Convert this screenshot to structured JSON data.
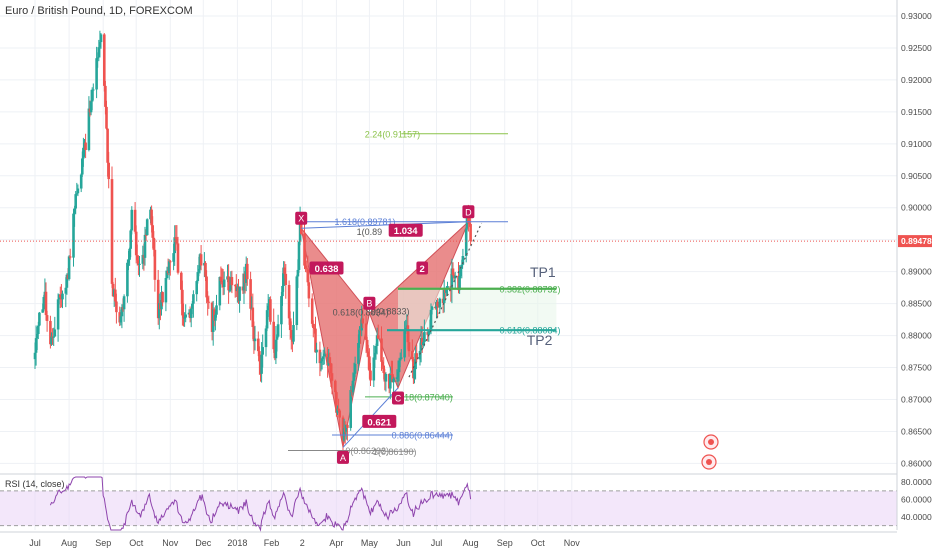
{
  "header": {
    "title": "Euro / British Pound, 1D, FOREXCOM"
  },
  "price_axis": {
    "ticks": [
      {
        "value": 0.86,
        "label": "0.86000"
      },
      {
        "value": 0.865,
        "label": "0.86500"
      },
      {
        "value": 0.87,
        "label": "0.87000"
      },
      {
        "value": 0.875,
        "label": "0.87500"
      },
      {
        "value": 0.88,
        "label": "0.88000"
      },
      {
        "value": 0.885,
        "label": "0.88500"
      },
      {
        "value": 0.89,
        "label": "0.89000"
      },
      {
        "value": 0.895,
        "label": "0.89500"
      },
      {
        "value": 0.9,
        "label": "0.90000"
      },
      {
        "value": 0.905,
        "label": "0.90500"
      },
      {
        "value": 0.91,
        "label": "0.91000"
      },
      {
        "value": 0.915,
        "label": "0.91500"
      },
      {
        "value": 0.92,
        "label": "0.92000"
      },
      {
        "value": 0.925,
        "label": "0.92500"
      },
      {
        "value": 0.93,
        "label": "0.93000"
      }
    ],
    "current_price": 0.89478,
    "current_price_label": "0.89478",
    "current_price_color": "#ef5350"
  },
  "time_axis": {
    "labels": [
      {
        "day": 0,
        "label": "Jul"
      },
      {
        "day": 31,
        "label": "Aug"
      },
      {
        "day": 62,
        "label": "Sep"
      },
      {
        "day": 92,
        "label": "Oct"
      },
      {
        "day": 123,
        "label": "Nov"
      },
      {
        "day": 153,
        "label": "Dec"
      },
      {
        "day": 184,
        "label": "2018"
      },
      {
        "day": 215,
        "label": "Feb"
      },
      {
        "day": 243,
        "label": "2"
      },
      {
        "day": 274,
        "label": "Apr"
      },
      {
        "day": 304,
        "label": "May"
      },
      {
        "day": 335,
        "label": "Jun"
      },
      {
        "day": 365,
        "label": "Jul"
      },
      {
        "day": 396,
        "label": "Aug"
      },
      {
        "day": 427,
        "label": "Sep"
      },
      {
        "day": 457,
        "label": "Oct"
      },
      {
        "day": 488,
        "label": "Nov"
      }
    ]
  },
  "colors": {
    "up": "#26a69a",
    "down": "#ef5350",
    "pattern_fill": "#e57373",
    "pattern_stroke": "#d14f57",
    "point_label_bg": "#c2185b",
    "fib_green": "#4caf50",
    "fib_light_green": "#8bc34a",
    "fib_teal": "#26a69a",
    "fib_blue": "#5b7fd6",
    "rsi_line": "#8e44ad",
    "rsi_band": "#ead3f5"
  },
  "chart_data": {
    "type": "candlestick",
    "instrument": "Euro / British Pound",
    "interval": "1D",
    "source": "FOREXCOM",
    "x_unit": "days since Jul 1 2017",
    "ylim": [
      0.8585,
      0.9325
    ],
    "pivot_price_path": [
      {
        "day": 0,
        "price": 0.8775
      },
      {
        "day": 8,
        "price": 0.8865
      },
      {
        "day": 15,
        "price": 0.8785
      },
      {
        "day": 22,
        "price": 0.886
      },
      {
        "day": 28,
        "price": 0.8865
      },
      {
        "day": 36,
        "price": 0.9
      },
      {
        "day": 45,
        "price": 0.909
      },
      {
        "day": 52,
        "price": 0.918
      },
      {
        "day": 60,
        "price": 0.927
      },
      {
        "day": 63,
        "price": 0.919
      },
      {
        "day": 67,
        "price": 0.905
      },
      {
        "day": 70,
        "price": 0.8885
      },
      {
        "day": 76,
        "price": 0.8805
      },
      {
        "day": 82,
        "price": 0.8865
      },
      {
        "day": 88,
        "price": 0.8985
      },
      {
        "day": 96,
        "price": 0.889
      },
      {
        "day": 104,
        "price": 0.9015
      },
      {
        "day": 112,
        "price": 0.8835
      },
      {
        "day": 118,
        "price": 0.8875
      },
      {
        "day": 128,
        "price": 0.895
      },
      {
        "day": 135,
        "price": 0.8825
      },
      {
        "day": 145,
        "price": 0.8855
      },
      {
        "day": 152,
        "price": 0.8935
      },
      {
        "day": 160,
        "price": 0.8805
      },
      {
        "day": 168,
        "price": 0.8885
      },
      {
        "day": 180,
        "price": 0.8885
      },
      {
        "day": 186,
        "price": 0.8865
      },
      {
        "day": 192,
        "price": 0.8905
      },
      {
        "day": 200,
        "price": 0.879
      },
      {
        "day": 205,
        "price": 0.8745
      },
      {
        "day": 212,
        "price": 0.8855
      },
      {
        "day": 218,
        "price": 0.8775
      },
      {
        "day": 226,
        "price": 0.8895
      },
      {
        "day": 234,
        "price": 0.879
      },
      {
        "day": 241,
        "price": 0.897
      },
      {
        "day": 250,
        "price": 0.8855
      },
      {
        "day": 258,
        "price": 0.874
      },
      {
        "day": 265,
        "price": 0.8775
      },
      {
        "day": 272,
        "price": 0.8705
      },
      {
        "day": 280,
        "price": 0.863
      },
      {
        "day": 288,
        "price": 0.871
      },
      {
        "day": 297,
        "price": 0.8835
      },
      {
        "day": 305,
        "price": 0.8735
      },
      {
        "day": 312,
        "price": 0.8795
      },
      {
        "day": 320,
        "price": 0.8715
      },
      {
        "day": 326,
        "price": 0.8735
      },
      {
        "day": 332,
        "price": 0.8765
      },
      {
        "day": 338,
        "price": 0.8805
      },
      {
        "day": 344,
        "price": 0.8745
      },
      {
        "day": 350,
        "price": 0.878
      },
      {
        "day": 356,
        "price": 0.8805
      },
      {
        "day": 363,
        "price": 0.8845
      },
      {
        "day": 370,
        "price": 0.8865
      },
      {
        "day": 376,
        "price": 0.8875
      },
      {
        "day": 382,
        "price": 0.8905
      },
      {
        "day": 386,
        "price": 0.888
      },
      {
        "day": 390,
        "price": 0.8935
      },
      {
        "day": 393,
        "price": 0.9005
      },
      {
        "day": 396,
        "price": 0.8948
      }
    ],
    "harmonic_pattern": {
      "points": [
        {
          "label": "X",
          "day": 242,
          "price": 0.8968
        },
        {
          "label": "A",
          "day": 280,
          "price": 0.8625
        },
        {
          "label": "B",
          "day": 304,
          "price": 0.8835
        },
        {
          "label": "C",
          "day": 330,
          "price": 0.8718
        },
        {
          "label": "D",
          "day": 394,
          "price": 0.8978
        }
      ],
      "ratios": [
        {
          "label": "0.638",
          "day": 265,
          "price": 0.8905
        },
        {
          "label": "0.621",
          "day": 313,
          "price": 0.8665
        },
        {
          "label": "2",
          "day": 352,
          "price": 0.8905
        },
        {
          "label": "1.034",
          "day": 337,
          "price": 0.8964
        }
      ]
    },
    "fib_levels": [
      {
        "label": "2.24(0.91157)",
        "price": 0.91157,
        "day_start": 333,
        "day_end": 430,
        "color": "#8bc34a",
        "text_day": 325
      },
      {
        "label": "1.618(0.89781)",
        "price": 0.89781,
        "day_start": 242,
        "day_end": 430,
        "color": "#5b7fd6",
        "text_day": 300
      },
      {
        "label": "0.382(0.88732)",
        "price": 0.88732,
        "day_start": 330,
        "day_end": 474,
        "color": "#4caf50",
        "text_day": 450
      },
      {
        "label": "0.618(0.88084)",
        "price": 0.88084,
        "day_start": 320,
        "day_end": 474,
        "color": "#26a69a",
        "text_day": 450
      },
      {
        "label": "0.618(0.87040)",
        "price": 0.8704,
        "day_start": 300,
        "day_end": 380,
        "color": "#4caf50",
        "text_day": 352
      },
      {
        "label": "0.886(0.86444)",
        "price": 0.86444,
        "day_start": 270,
        "day_end": 380,
        "color": "#5b7fd6",
        "text_day": 352
      },
      {
        "label": "0(0.86202)",
        "price": 0.86202,
        "day_start": 230,
        "day_end": 318,
        "color": "#888888",
        "text_day": 302
      },
      {
        "label": "1(0.86190)",
        "price": 0.8619,
        "day_start": 318,
        "day_end": 345,
        "color": "#888888",
        "text_day": 327
      }
    ],
    "overlap_labels": [
      {
        "label": "1(0.89",
        "day": 304,
        "price": 0.8962
      },
      {
        "label": "0.618(0.8834)",
        "day": 296,
        "price": 0.8836
      },
      {
        "label": "0(0.8833)",
        "day": 323,
        "price": 0.8838
      }
    ],
    "targets": [
      {
        "label": "TP1",
        "day": 450,
        "price": 0.8892
      },
      {
        "label": "TP2",
        "day": 447,
        "price": 0.8785
      }
    ],
    "trendline": {
      "from": {
        "day": 340,
        "price": 0.8735
      },
      "to": {
        "day": 406,
        "price": 0.8976
      }
    },
    "rsi": {
      "label": "RSI (14, close)",
      "period": 14,
      "upper": 70,
      "lower": 30,
      "ticks": [
        {
          "value": 40,
          "label": "40.0000"
        },
        {
          "value": 60,
          "label": "60.0000"
        },
        {
          "value": 80,
          "label": "80.0000"
        }
      ],
      "ylim": [
        25,
        86
      ]
    }
  }
}
